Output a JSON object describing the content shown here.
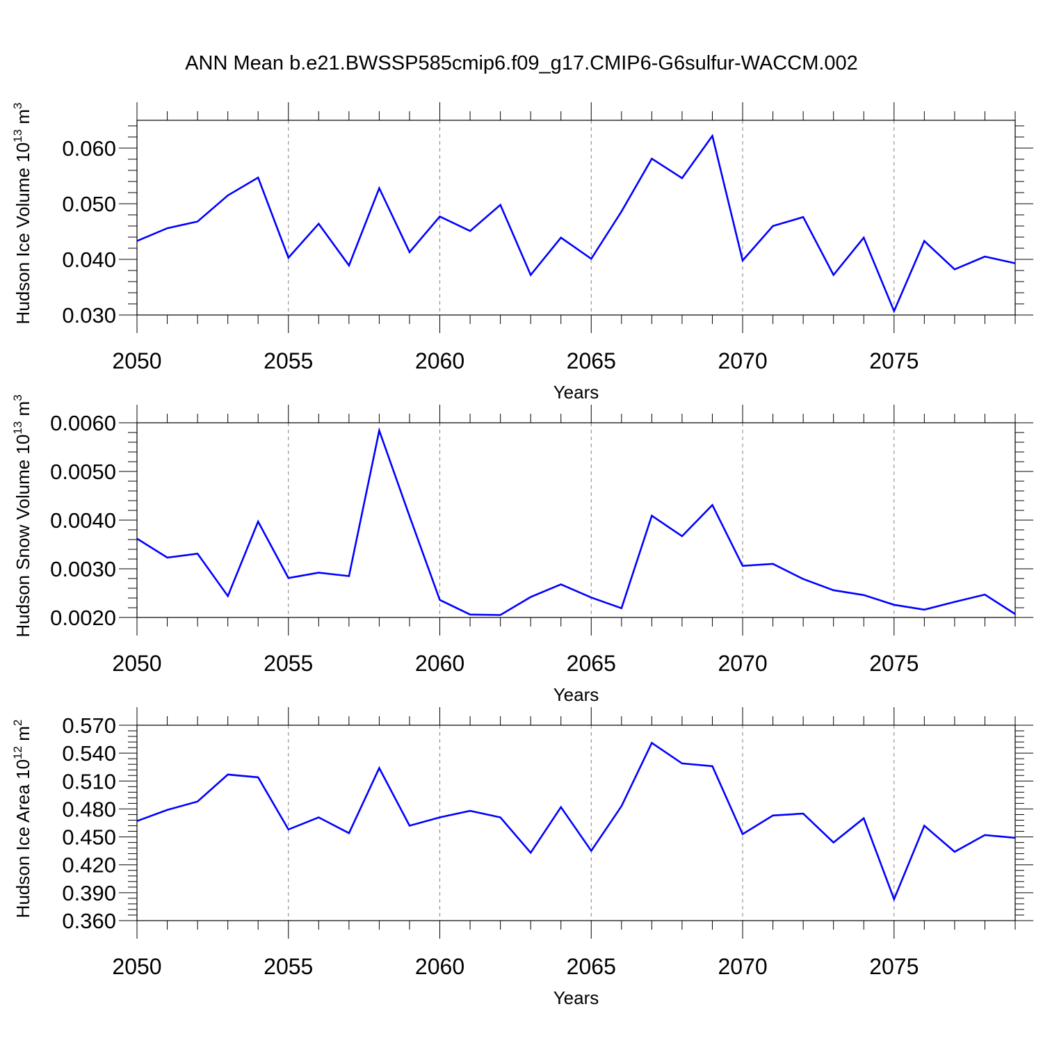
{
  "title": "ANN Mean b.e21.BWSSP585cmip6.f09_g17.CMIP6-G6sulfur-WACCM.002",
  "colors": {
    "line": "#0000ff",
    "axis": "#000000",
    "grid": "#808080"
  },
  "chart_data": [
    {
      "type": "line",
      "ylabel": {
        "main": "Hudson Ice Volume 10",
        "sup": "13",
        "unit": " m",
        "unit_sup": "3"
      },
      "xlabel": "Years",
      "xlim": [
        2050,
        2079
      ],
      "ylim": [
        0.03,
        0.065
      ],
      "yticks": [
        0.03,
        0.04,
        0.05,
        0.06
      ],
      "ytick_labels": [
        "0.030",
        "0.040",
        "0.050",
        "0.060"
      ],
      "xticks": [
        2050,
        2055,
        2060,
        2065,
        2070,
        2075
      ],
      "xtick_labels": [
        "2050",
        "2055",
        "2060",
        "2065",
        "2070",
        "2075"
      ],
      "grid": "vertical dashed at major x ticks",
      "x": [
        2050,
        2051,
        2052,
        2053,
        2054,
        2055,
        2056,
        2057,
        2058,
        2059,
        2060,
        2061,
        2062,
        2063,
        2064,
        2065,
        2066,
        2067,
        2068,
        2069,
        2070,
        2071,
        2072,
        2073,
        2074,
        2075,
        2076,
        2077,
        2078,
        2079
      ],
      "series": [
        {
          "values": [
            0.0433,
            0.0456,
            0.0468,
            0.0515,
            0.0547,
            0.0403,
            0.0464,
            0.0389,
            0.0528,
            0.0413,
            0.0477,
            0.0451,
            0.0498,
            0.0372,
            0.0439,
            0.0401,
            0.0486,
            0.0581,
            0.0546,
            0.0622,
            0.0398,
            0.046,
            0.0476,
            0.0372,
            0.0439,
            0.0307,
            0.0433,
            0.0382,
            0.0405,
            0.0393
          ]
        }
      ]
    },
    {
      "type": "line",
      "ylabel": {
        "main": "Hudson Snow Volume 10",
        "sup": "13",
        "unit": " m",
        "unit_sup": "3"
      },
      "xlabel": "Years",
      "xlim": [
        2050,
        2079
      ],
      "ylim": [
        0.002,
        0.006
      ],
      "yticks": [
        0.002,
        0.003,
        0.004,
        0.005,
        0.006
      ],
      "ytick_labels": [
        "0.0020",
        "0.0030",
        "0.0040",
        "0.0050",
        "0.0060"
      ],
      "xticks": [
        2050,
        2055,
        2060,
        2065,
        2070,
        2075
      ],
      "xtick_labels": [
        "2050",
        "2055",
        "2060",
        "2065",
        "2070",
        "2075"
      ],
      "grid": "vertical dashed at major x ticks",
      "x": [
        2050,
        2051,
        2052,
        2053,
        2054,
        2055,
        2056,
        2057,
        2058,
        2059,
        2060,
        2061,
        2062,
        2063,
        2064,
        2065,
        2066,
        2067,
        2068,
        2069,
        2070,
        2071,
        2072,
        2073,
        2074,
        2075,
        2076,
        2077,
        2078,
        2079
      ],
      "series": [
        {
          "values": [
            0.00362,
            0.00323,
            0.00331,
            0.00244,
            0.00397,
            0.00281,
            0.00292,
            0.00285,
            0.00584,
            0.00408,
            0.00236,
            0.00206,
            0.00205,
            0.00242,
            0.00268,
            0.00241,
            0.00219,
            0.00409,
            0.00367,
            0.00431,
            0.00306,
            0.0031,
            0.00279,
            0.00256,
            0.00246,
            0.00226,
            0.00216,
            0.00232,
            0.00247,
            0.00207
          ]
        }
      ]
    },
    {
      "type": "line",
      "ylabel": {
        "main": "Hudson Ice Area 10",
        "sup": "12",
        "unit": " m",
        "unit_sup": "2"
      },
      "xlabel": "Years",
      "xlim": [
        2050,
        2079
      ],
      "ylim": [
        0.36,
        0.57
      ],
      "yticks": [
        0.36,
        0.39,
        0.42,
        0.45,
        0.48,
        0.51,
        0.54,
        0.57
      ],
      "ytick_labels": [
        "0.360",
        "0.390",
        "0.420",
        "0.450",
        "0.480",
        "0.510",
        "0.540",
        "0.570"
      ],
      "xticks": [
        2050,
        2055,
        2060,
        2065,
        2070,
        2075
      ],
      "xtick_labels": [
        "2050",
        "2055",
        "2060",
        "2065",
        "2070",
        "2075"
      ],
      "grid": "vertical dashed at major x ticks",
      "x": [
        2050,
        2051,
        2052,
        2053,
        2054,
        2055,
        2056,
        2057,
        2058,
        2059,
        2060,
        2061,
        2062,
        2063,
        2064,
        2065,
        2066,
        2067,
        2068,
        2069,
        2070,
        2071,
        2072,
        2073,
        2074,
        2075,
        2076,
        2077,
        2078,
        2079
      ],
      "series": [
        {
          "values": [
            0.467,
            0.479,
            0.488,
            0.517,
            0.514,
            0.458,
            0.471,
            0.454,
            0.524,
            0.462,
            0.471,
            0.478,
            0.471,
            0.433,
            0.482,
            0.435,
            0.483,
            0.551,
            0.529,
            0.526,
            0.453,
            0.473,
            0.475,
            0.444,
            0.47,
            0.383,
            0.462,
            0.434,
            0.452,
            0.449
          ]
        }
      ]
    }
  ]
}
